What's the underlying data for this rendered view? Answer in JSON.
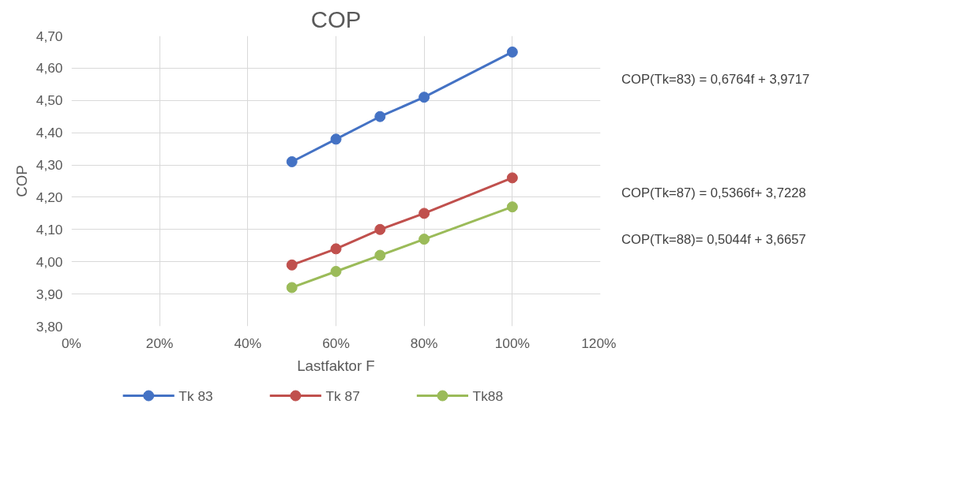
{
  "chart_data": {
    "type": "line",
    "title": "COP",
    "xlabel": "Lastfaktor F",
    "ylabel": "COP",
    "x": [
      0.5,
      0.6,
      0.7,
      0.8,
      1.0
    ],
    "series": [
      {
        "name": "Tk 83",
        "color": "#4472c4",
        "values": [
          4.31,
          4.38,
          4.45,
          4.51,
          4.65
        ]
      },
      {
        "name": "Tk 87",
        "color": "#c0504d",
        "values": [
          3.99,
          4.04,
          4.1,
          4.15,
          4.26
        ]
      },
      {
        "name": "Tk88",
        "color": "#9bbb59",
        "values": [
          3.92,
          3.97,
          4.02,
          4.07,
          4.17
        ]
      }
    ],
    "xlim": [
      0,
      1.2
    ],
    "xticks": [
      {
        "value": 0,
        "label": "0%"
      },
      {
        "value": 0.2,
        "label": "20%"
      },
      {
        "value": 0.4,
        "label": "40%"
      },
      {
        "value": 0.6,
        "label": "60%"
      },
      {
        "value": 0.8,
        "label": "80%"
      },
      {
        "value": 1.0,
        "label": "100%"
      },
      {
        "value": 1.2,
        "label": "120%"
      }
    ],
    "ylim": [
      3.8,
      4.7
    ],
    "yticks": [
      {
        "value": 3.8,
        "label": "3,80"
      },
      {
        "value": 3.9,
        "label": "3,90"
      },
      {
        "value": 4.0,
        "label": "4,00"
      },
      {
        "value": 4.1,
        "label": "4,10"
      },
      {
        "value": 4.2,
        "label": "4,20"
      },
      {
        "value": 4.3,
        "label": "4,30"
      },
      {
        "value": 4.4,
        "label": "4,40"
      },
      {
        "value": 4.5,
        "label": "4,50"
      },
      {
        "value": 4.6,
        "label": "4,60"
      },
      {
        "value": 4.7,
        "label": "4,70"
      }
    ],
    "annotations": [
      "COP(Tk=83) = 0,6764f + 3,9717",
      "COP(Tk=87) = 0,5366f+ 3,7228",
      "COP(Tk=88)= 0,5044f + 3,6657"
    ],
    "grid": true,
    "legend": "bottom",
    "marker": "circle",
    "line_style": "solid"
  }
}
